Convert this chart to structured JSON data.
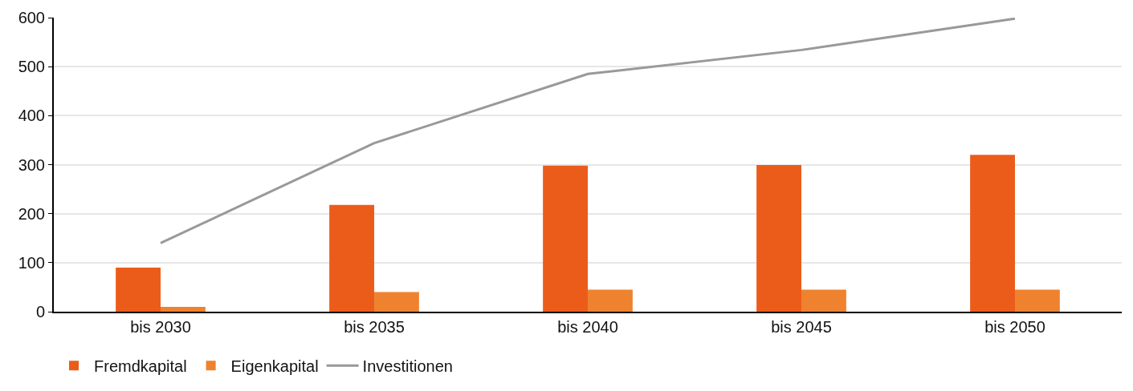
{
  "chart_data": {
    "type": "bar",
    "categories": [
      "bis 2030",
      "bis 2035",
      "bis 2040",
      "bis 2045",
      "bis 2050"
    ],
    "series": [
      {
        "name": "Fremdkapital",
        "color": "#eb5c1a",
        "values": [
          90,
          218,
          298,
          299,
          320
        ]
      },
      {
        "name": "Eigenkapital",
        "color": "#ef822e",
        "values": [
          10,
          40,
          45,
          45,
          45
        ]
      },
      {
        "name": "Investitionen",
        "type": "line",
        "color": "#999999",
        "values": [
          140,
          344,
          485,
          534,
          598
        ],
        "marker": "none",
        "line_style": "solid"
      }
    ],
    "ylim": [
      0,
      600
    ],
    "yticks": [
      0,
      100,
      200,
      300,
      400,
      500,
      600
    ],
    "grid": "y",
    "legend": "bottom left"
  }
}
